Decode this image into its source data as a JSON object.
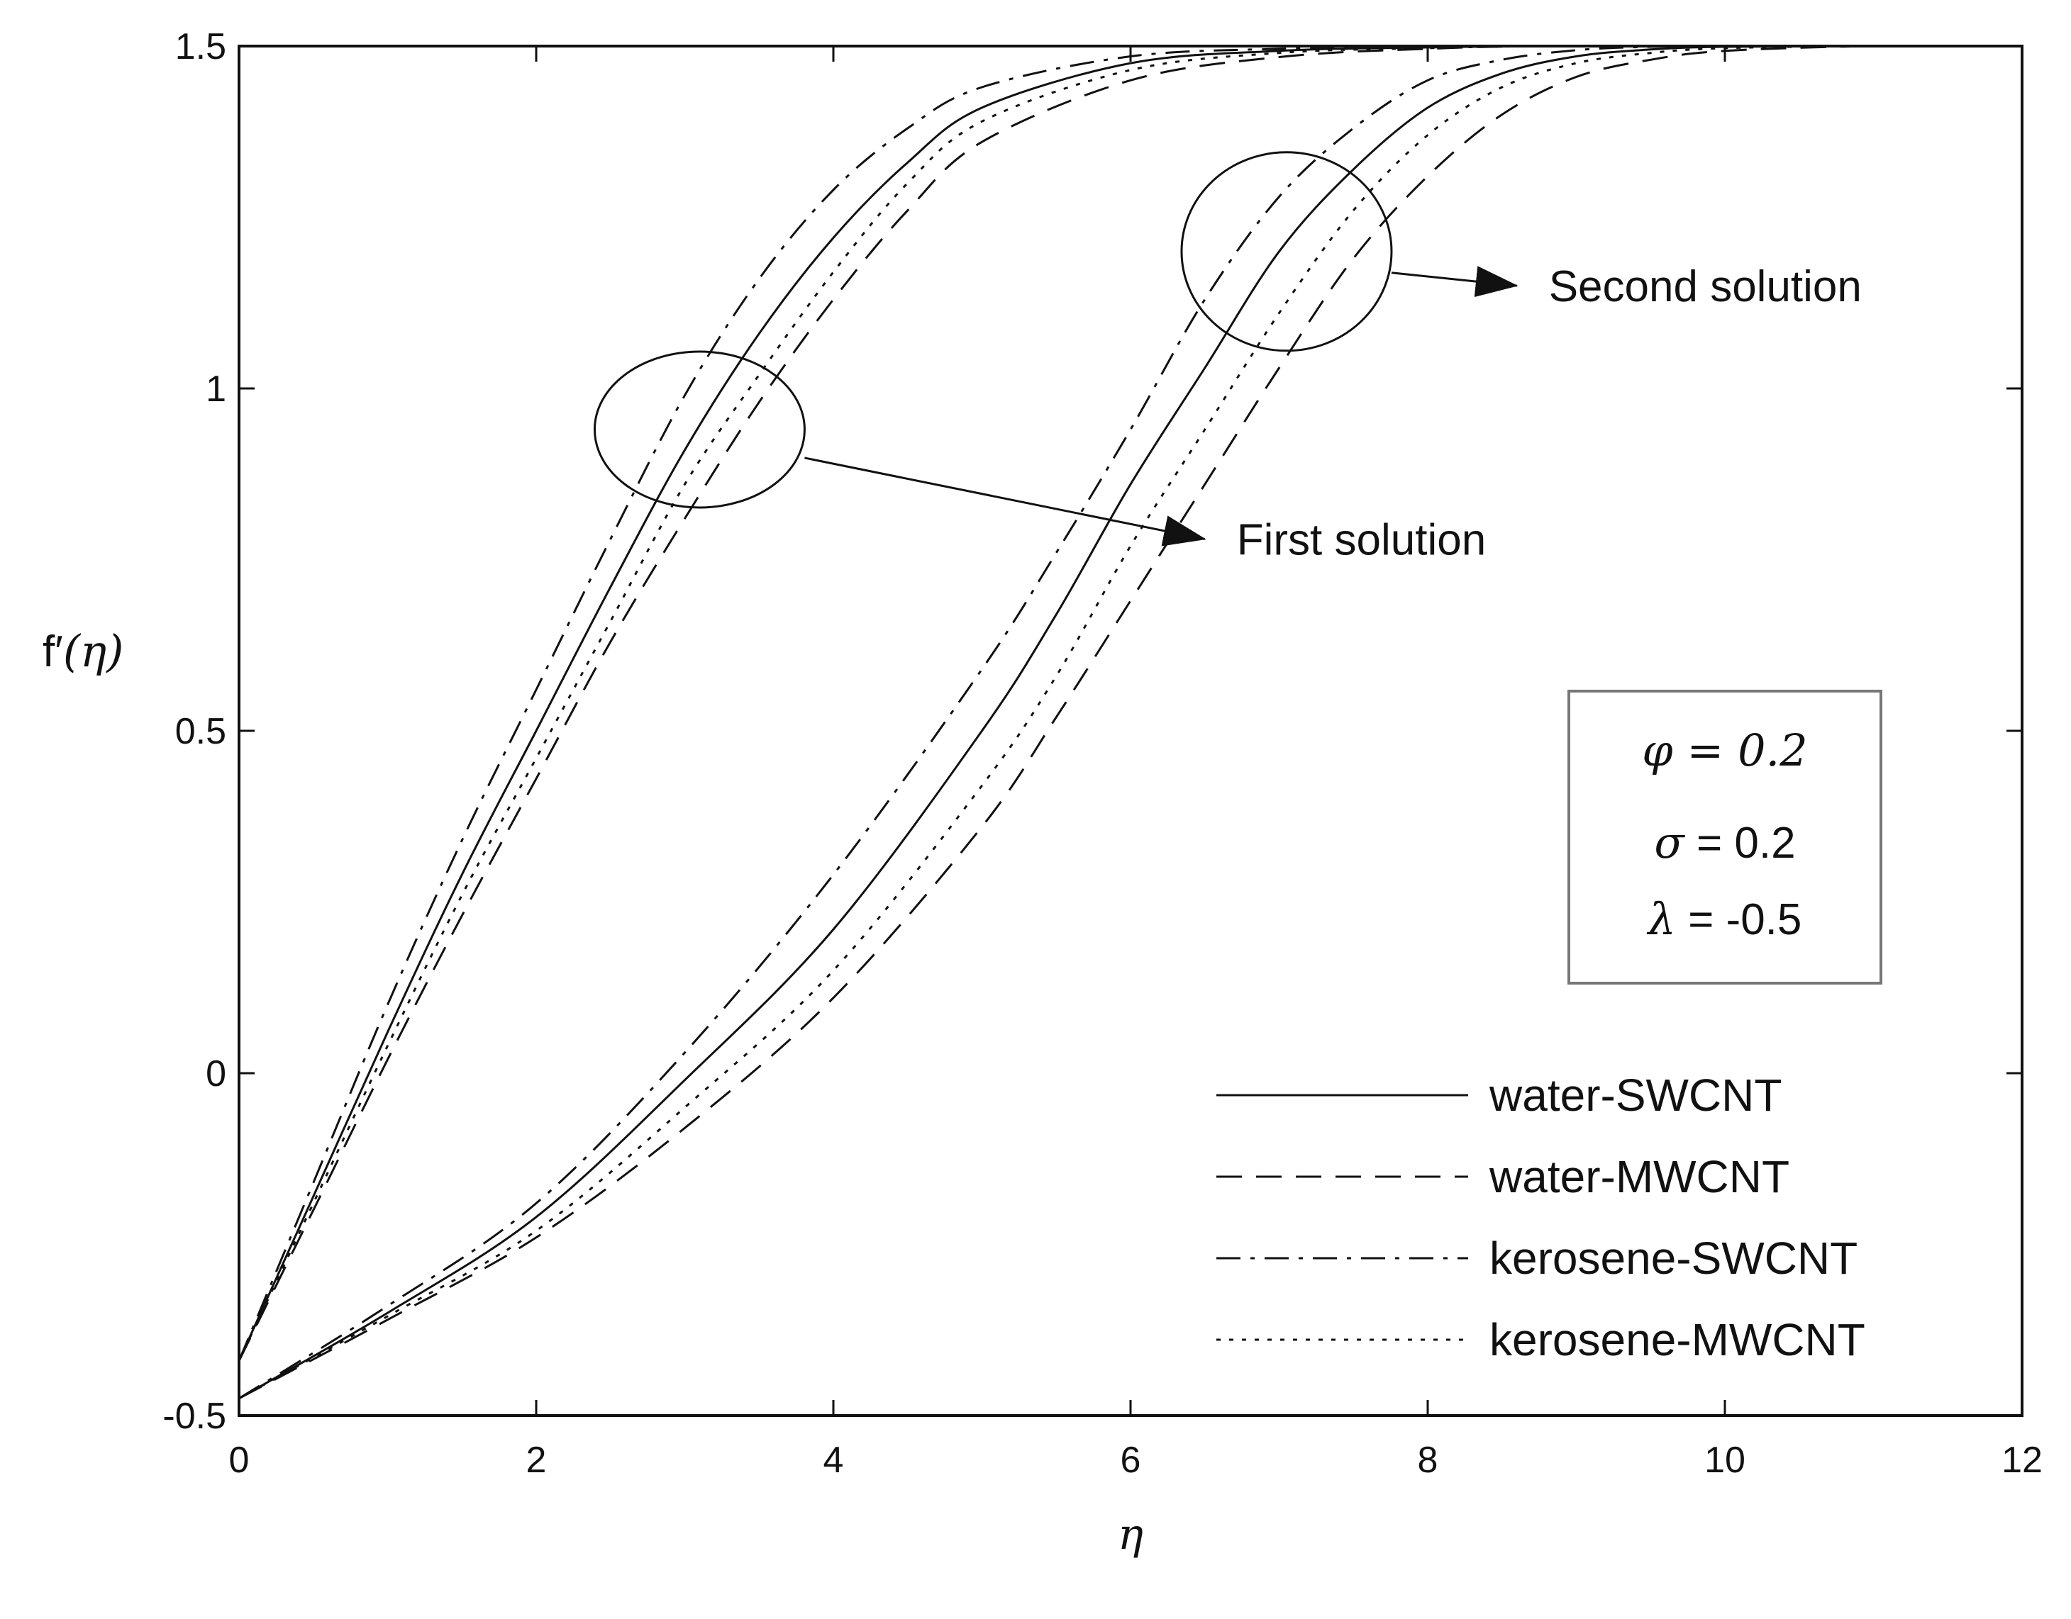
{
  "chart_data": {
    "type": "line",
    "title": "",
    "xlabel": "η",
    "ylabel_main": "f",
    "ylabel_prime": "′",
    "ylabel_arg": "(η)",
    "xlim": [
      0,
      12
    ],
    "ylim": [
      -0.5,
      1.5
    ],
    "xticks": [
      0,
      2,
      4,
      6,
      8,
      10,
      12
    ],
    "xtick_labels": [
      "0",
      "2",
      "4",
      "6",
      "8",
      "10",
      "12"
    ],
    "yticks": [
      -0.5,
      0,
      0.5,
      1,
      1.5
    ],
    "ytick_labels": [
      "-0.5",
      "0",
      "0.5",
      "1",
      "1.5"
    ],
    "grid": false,
    "legend_position": "bottom-right",
    "series": [
      {
        "name": "water-SWCNT",
        "dash": "solid",
        "branch": "first",
        "x": [
          0,
          0.5,
          1,
          1.5,
          2,
          2.5,
          3,
          3.5,
          4,
          4.5,
          5,
          6,
          7,
          8,
          9,
          12
        ],
        "y": [
          -0.42,
          -0.18,
          0.06,
          0.29,
          0.5,
          0.71,
          0.91,
          1.08,
          1.22,
          1.33,
          1.41,
          1.475,
          1.493,
          1.498,
          1.5,
          1.5
        ]
      },
      {
        "name": "water-MWCNT",
        "dash": "dashed",
        "branch": "first",
        "x": [
          0,
          0.5,
          1,
          1.5,
          2,
          2.5,
          3,
          3.5,
          4,
          4.5,
          5,
          6,
          7,
          8,
          9,
          12
        ],
        "y": [
          -0.42,
          -0.2,
          0.02,
          0.23,
          0.43,
          0.63,
          0.81,
          0.98,
          1.13,
          1.26,
          1.36,
          1.45,
          1.484,
          1.496,
          1.5,
          1.5
        ]
      },
      {
        "name": "kerosene-SWCNT",
        "dash": "dashdot",
        "branch": "first",
        "x": [
          0,
          0.5,
          1,
          1.5,
          2,
          2.5,
          3,
          3.5,
          4,
          4.5,
          5,
          6,
          7,
          8,
          9,
          12
        ],
        "y": [
          -0.42,
          -0.16,
          0.1,
          0.34,
          0.56,
          0.78,
          0.99,
          1.16,
          1.29,
          1.38,
          1.44,
          1.485,
          1.496,
          1.499,
          1.5,
          1.5
        ]
      },
      {
        "name": "kerosene-MWCNT",
        "dash": "dotted",
        "branch": "first",
        "x": [
          0,
          0.5,
          1,
          1.5,
          2,
          2.5,
          3,
          3.5,
          4,
          4.5,
          5,
          6,
          7,
          8,
          9,
          12
        ],
        "y": [
          -0.42,
          -0.19,
          0.04,
          0.26,
          0.46,
          0.66,
          0.86,
          1.02,
          1.17,
          1.3,
          1.39,
          1.465,
          1.49,
          1.497,
          1.5,
          1.5
        ]
      },
      {
        "name": "water-SWCNT",
        "dash": "solid",
        "branch": "second",
        "x": [
          0,
          1,
          2,
          3,
          4,
          5,
          5.5,
          6,
          6.5,
          7,
          7.5,
          8,
          8.5,
          9,
          9.5,
          10,
          11,
          12
        ],
        "y": [
          -0.475,
          -0.35,
          -0.21,
          -0.01,
          0.21,
          0.5,
          0.67,
          0.86,
          1.03,
          1.2,
          1.32,
          1.41,
          1.46,
          1.485,
          1.495,
          1.499,
          1.5,
          1.5
        ]
      },
      {
        "name": "water-MWCNT",
        "dash": "dashed",
        "branch": "second",
        "x": [
          0,
          1,
          2,
          3,
          4,
          5,
          5.5,
          6,
          6.5,
          7,
          7.5,
          8,
          8.5,
          9,
          9.5,
          10,
          11,
          12
        ],
        "y": [
          -0.475,
          -0.36,
          -0.24,
          -0.08,
          0.11,
          0.36,
          0.52,
          0.69,
          0.86,
          1.03,
          1.19,
          1.31,
          1.4,
          1.455,
          1.48,
          1.493,
          1.5,
          1.5
        ]
      },
      {
        "name": "kerosene-SWCNT",
        "dash": "dashdot",
        "branch": "second",
        "x": [
          0,
          1,
          2,
          3,
          4,
          5,
          5.5,
          6,
          6.5,
          7,
          7.5,
          8,
          8.5,
          9,
          9.5,
          10,
          11,
          12
        ],
        "y": [
          -0.475,
          -0.34,
          -0.19,
          0.03,
          0.29,
          0.59,
          0.76,
          0.94,
          1.13,
          1.28,
          1.38,
          1.45,
          1.48,
          1.494,
          1.499,
          1.5,
          1.5,
          1.5
        ]
      },
      {
        "name": "kerosene-MWCNT",
        "dash": "dotted",
        "branch": "second",
        "x": [
          0,
          1,
          2,
          3,
          4,
          5,
          5.5,
          6,
          6.5,
          7,
          7.5,
          8,
          8.5,
          9,
          9.5,
          10,
          11,
          12
        ],
        "y": [
          -0.475,
          -0.355,
          -0.23,
          -0.05,
          0.15,
          0.42,
          0.58,
          0.77,
          0.94,
          1.11,
          1.26,
          1.37,
          1.44,
          1.475,
          1.49,
          1.497,
          1.5,
          1.5
        ]
      }
    ],
    "annotations": [
      {
        "text": "First solution",
        "ellipse_center": [
          3.1,
          0.94
        ],
        "arrow_to": [
          6.5,
          0.78
        ]
      },
      {
        "text": "Second solution",
        "ellipse_center": [
          7.05,
          1.2
        ],
        "arrow_to": [
          8.6,
          1.15
        ]
      }
    ],
    "param_box": {
      "phi_symbol": "φ",
      "phi_eq": " = 0.2",
      "sigma_symbol": "σ",
      "sigma_eq": " = 0.2",
      "lambda_symbol": "λ",
      "lambda_eq": " = -0.5"
    }
  }
}
